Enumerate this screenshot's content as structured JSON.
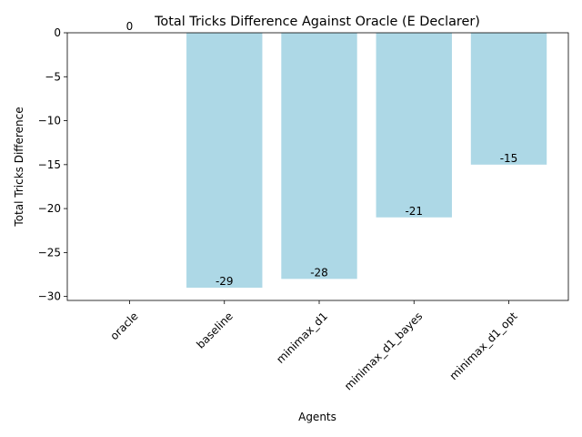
{
  "chart_data": {
    "type": "bar",
    "title": "Total Tricks Difference Against Oracle (E Declarer)",
    "xlabel": "Agents",
    "ylabel": "Total Tricks Difference",
    "categories": [
      "oracle",
      "baseline",
      "minimax_d1",
      "minimax_d1_bayes",
      "minimax_d1_opt"
    ],
    "values": [
      0,
      -29,
      -28,
      -21,
      -15
    ],
    "data_labels": [
      "0",
      "-29",
      "-28",
      "-21",
      "-15"
    ],
    "ylim": [
      -30.45,
      0
    ],
    "yticks": [
      0,
      -5,
      -10,
      -15,
      -20,
      -25,
      -30
    ],
    "ytick_labels": [
      "0",
      "−5",
      "−10",
      "−15",
      "−20",
      "−25",
      "−30"
    ],
    "xtick_rotation": 45,
    "bar_color": "#add8e6",
    "grid": false,
    "legend": "none"
  }
}
